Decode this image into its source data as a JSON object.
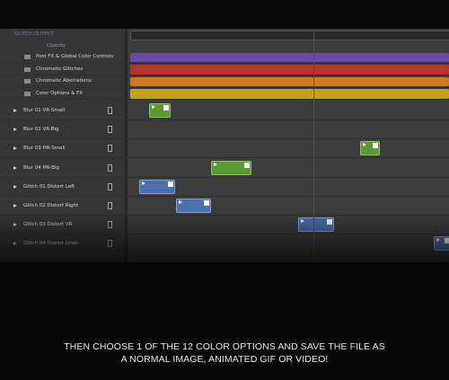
{
  "panel": {
    "group": "GLITCH OUTPUT",
    "property": "Opacity",
    "folders": [
      "Post FX & Global Color Controls",
      "Chromatic Glitches",
      "Chromatic Aberrations",
      "Color Options & FX"
    ],
    "layers": [
      "Blur 01 VR-Small",
      "Blur 02 VR-Big",
      "Blur 03 HR-Small",
      "Blur 04 HR-Big",
      "Glitch 01 Distort Left",
      "Glitch 02 Distort Right",
      "Glitch 03 Distort VR",
      "Glitch 04 Distort Lines"
    ]
  },
  "caption": {
    "lines": [
      "THEN CHOOSE 1 OF THE 12 COLOR OPTIONS AND SAVE THE FILE AS",
      "A NORMAL IMAGE, ANIMATED GIF OR VIDEO!"
    ]
  }
}
